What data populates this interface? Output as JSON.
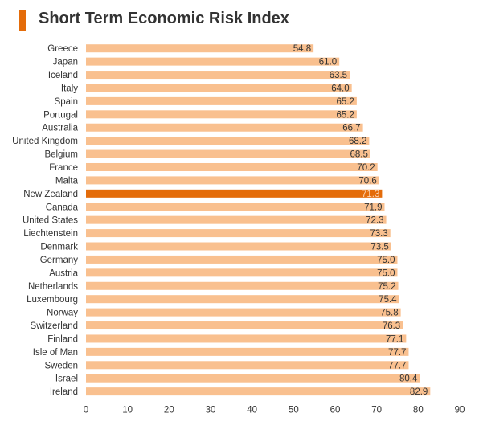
{
  "colors": {
    "accent": "#E46C0A",
    "bar": "#F9C08F",
    "highlight": "#E46C0A",
    "text": "#333333",
    "highlight_text": "#FBD5B5"
  },
  "chart_data": {
    "type": "bar",
    "orientation": "horizontal",
    "title": "Short Term Economic Risk Index",
    "xlim": [
      0,
      90
    ],
    "xticks": [
      0,
      10,
      20,
      30,
      40,
      50,
      60,
      70,
      80,
      90
    ],
    "grid": false,
    "categories": [
      "Greece",
      "Japan",
      "Iceland",
      "Italy",
      "Spain",
      "Portugal",
      "Australia",
      "United Kingdom",
      "Belgium",
      "France",
      "Malta",
      "New Zealand",
      "Canada",
      "United States",
      "Liechtenstein",
      "Denmark",
      "Germany",
      "Austria",
      "Netherlands",
      "Luxembourg",
      "Norway",
      "Switzerland",
      "Finland",
      "Isle of Man",
      "Sweden",
      "Israel",
      "Ireland"
    ],
    "values": [
      54.8,
      61.0,
      63.5,
      64.0,
      65.2,
      65.2,
      66.7,
      68.2,
      68.5,
      70.2,
      70.6,
      71.3,
      71.9,
      72.3,
      73.3,
      73.5,
      75.0,
      75.0,
      75.2,
      75.4,
      75.8,
      76.3,
      77.1,
      77.7,
      77.7,
      80.4,
      82.9
    ],
    "value_labels": [
      "54.8",
      "61.0",
      "63.5",
      "64.0",
      "65.2",
      "65.2",
      "66.7",
      "68.2",
      "68.5",
      "70.2",
      "70.6",
      "71.3",
      "71.9",
      "72.3",
      "73.3",
      "73.5",
      "75.0",
      "75.0",
      "75.2",
      "75.4",
      "75.8",
      "76.3",
      "77.1",
      "77.7",
      "77.7",
      "80.4",
      "82.9"
    ],
    "highlight": "New Zealand"
  }
}
